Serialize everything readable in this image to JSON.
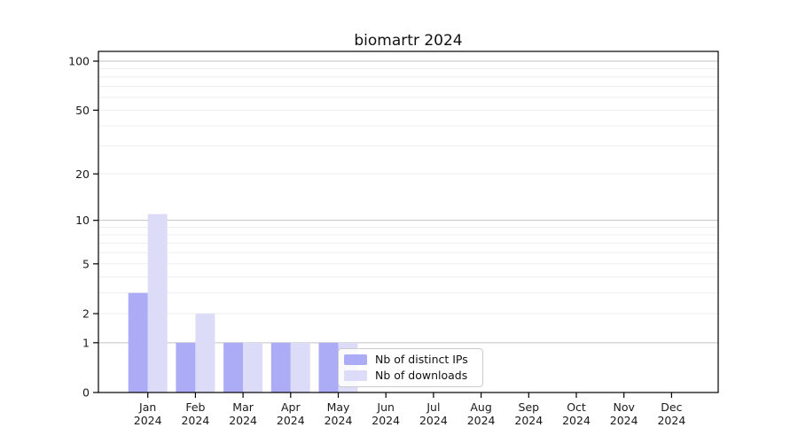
{
  "chart_data": {
    "type": "bar",
    "title": "biomartr 2024",
    "categories": [
      "Jan 2024",
      "Feb 2024",
      "Mar 2024",
      "Apr 2024",
      "May 2024",
      "Jun 2024",
      "Jul 2024",
      "Aug 2024",
      "Sep 2024",
      "Oct 2024",
      "Nov 2024",
      "Dec 2024"
    ],
    "x_tick_months": [
      "Jan",
      "Feb",
      "Mar",
      "Apr",
      "May",
      "Jun",
      "Jul",
      "Aug",
      "Sep",
      "Oct",
      "Nov",
      "Dec"
    ],
    "x_tick_year": "2024",
    "series": [
      {
        "name": "Nb of distinct IPs",
        "color": "#acacf6",
        "values": [
          3,
          1,
          1,
          1,
          1,
          0,
          0,
          0,
          0,
          0,
          0,
          0
        ]
      },
      {
        "name": "Nb of downloads",
        "color": "#dcdcf8",
        "values": [
          11,
          2,
          1,
          1,
          1,
          0,
          0,
          0,
          0,
          0,
          0,
          0
        ]
      }
    ],
    "y_axis": {
      "scale": "log1p",
      "tick_values": [
        0,
        1,
        2,
        5,
        10,
        20,
        50,
        100
      ],
      "tick_labels": [
        "0",
        "1",
        "2",
        "5",
        "10",
        "20",
        "50",
        "100"
      ],
      "major_grid_values": [
        1,
        10,
        100
      ],
      "minor_grid_values": [
        2,
        3,
        4,
        5,
        6,
        7,
        8,
        9,
        20,
        30,
        40,
        50,
        60,
        70,
        80,
        90
      ],
      "range": [
        0,
        115
      ]
    },
    "legend": {
      "position": "inside-bottom-left-of-center",
      "items": [
        "Nb of distinct IPs",
        "Nb of downloads"
      ]
    },
    "grid": true,
    "xlabel": "",
    "ylabel": ""
  },
  "style": {
    "background": "#ffffff",
    "bar_color_distinct_ips": "#acacf6",
    "bar_color_downloads": "#dcdcf8",
    "grid_major_color": "#c2c2c2",
    "grid_minor_color": "#ededed",
    "axis_color": "#000000",
    "tick_text_color": "#1a1a1a",
    "title_color": "#111111",
    "legend_border_color": "#cccccc"
  }
}
